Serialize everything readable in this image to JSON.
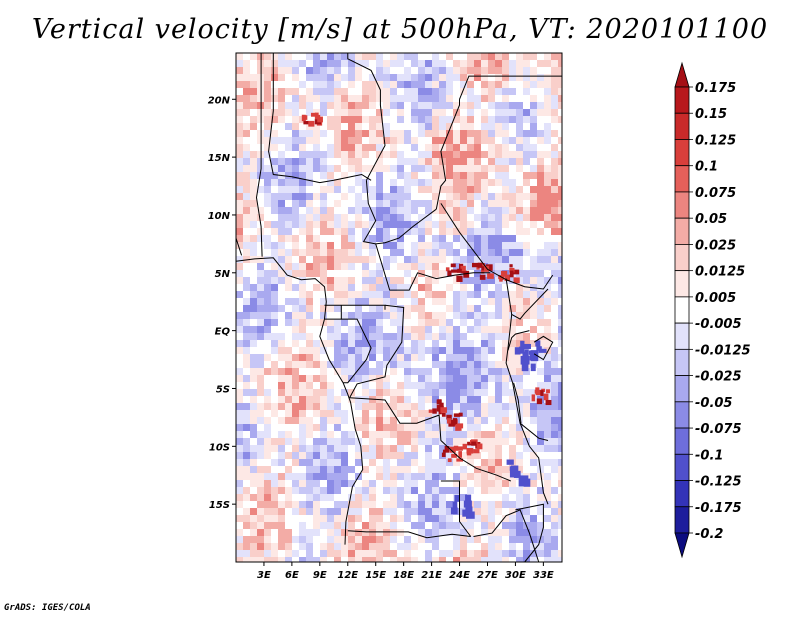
{
  "chart_data": {
    "type": "heatmap",
    "title": "Vertical velocity [m/s] at 500hPa, VT: 2020101100",
    "variable": "Vertical velocity",
    "units": "m/s",
    "level": "500hPa",
    "valid_time": "2020101100",
    "lon_range": [
      0,
      35
    ],
    "lat_range": [
      -20,
      24
    ],
    "x_ticks": [
      3,
      6,
      9,
      12,
      15,
      18,
      21,
      24,
      27,
      30,
      33
    ],
    "x_tick_labels": [
      "3E",
      "6E",
      "9E",
      "12E",
      "15E",
      "18E",
      "21E",
      "24E",
      "27E",
      "30E",
      "33E"
    ],
    "y_ticks": [
      20,
      15,
      10,
      5,
      0,
      -5,
      -10,
      -15
    ],
    "y_tick_labels": [
      "20N",
      "15N",
      "10N",
      "5N",
      "EQ",
      "5S",
      "10S",
      "15S"
    ],
    "colorbar": {
      "levels": [
        "0.175",
        "0.15",
        "0.125",
        "0.1",
        "0.075",
        "0.05",
        "0.025",
        "0.0125",
        "0.005",
        "-0.005",
        "-0.0125",
        "-0.025",
        "-0.05",
        "-0.075",
        "-0.1",
        "-0.125",
        "-0.175",
        "-0.2"
      ],
      "colors": [
        "#a50f15",
        "#b8181c",
        "#c92a2a",
        "#d93f3b",
        "#e5605a",
        "#ec8580",
        "#f3aca6",
        "#f9cfca",
        "#fde8e5",
        "#ffffff",
        "#e2e2fb",
        "#c6c6f6",
        "#a9a9ef",
        "#8b8be6",
        "#6e6edb",
        "#5050cc",
        "#3333b8",
        "#1d1d9c",
        "#0c0c80"
      ]
    }
  },
  "credit": "GrADS: IGES/COLA"
}
